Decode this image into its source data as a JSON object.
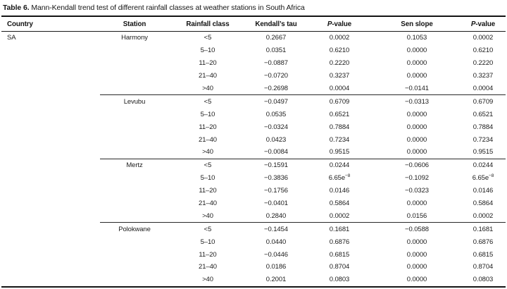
{
  "caption": {
    "label": "Table 6.",
    "text": " Mann-Kendall trend test of different rainfall classes at weather stations in South Africa"
  },
  "columns": [
    {
      "label": "Country",
      "align": "left"
    },
    {
      "label": "Station"
    },
    {
      "label": "Rainfall class"
    },
    {
      "label": "Kendall’s tau"
    },
    {
      "label": "P-value",
      "italic_first": true
    },
    {
      "label": "Sen slope"
    },
    {
      "label": "P-value",
      "italic_first": true
    }
  ],
  "country": "SA",
  "chart_data": {
    "type": "table",
    "title": "Table 6. Mann-Kendall trend test of different rainfall classes at weather stations in South Africa",
    "groups": [
      {
        "station": "Harmony",
        "rows": [
          {
            "rainfall_class": "<5",
            "tau": "0.2667",
            "p": "0.0002",
            "sen": "0.1053",
            "p2": "0.0002"
          },
          {
            "rainfall_class": "5–10",
            "tau": "0.0351",
            "p": "0.6210",
            "sen": "0.0000",
            "p2": "0.6210"
          },
          {
            "rainfall_class": "11–20",
            "tau": "−0.0887",
            "p": "0.2220",
            "sen": "0.0000",
            "p2": "0.2220"
          },
          {
            "rainfall_class": "21–40",
            "tau": "−0.0720",
            "p": "0.3237",
            "sen": "0.0000",
            "p2": "0.3237"
          },
          {
            "rainfall_class": ">40",
            "tau": "−0.2698",
            "p": "0.0004",
            "sen": "−0.0141",
            "p2": "0.0004"
          }
        ]
      },
      {
        "station": "Levubu",
        "rows": [
          {
            "rainfall_class": "<5",
            "tau": "−0.0497",
            "p": "0.6709",
            "sen": "−0.0313",
            "p2": "0.6709"
          },
          {
            "rainfall_class": "5–10",
            "tau": "0.0535",
            "p": "0.6521",
            "sen": "0.0000",
            "p2": "0.6521"
          },
          {
            "rainfall_class": "11–20",
            "tau": "−0.0324",
            "p": "0.7884",
            "sen": "0.0000",
            "p2": "0.7884"
          },
          {
            "rainfall_class": "21–40",
            "tau": "0.0423",
            "p": "0.7234",
            "sen": "0.0000",
            "p2": "0.7234"
          },
          {
            "rainfall_class": ">40",
            "tau": "−0.0084",
            "p": "0.9515",
            "sen": "0.0000",
            "p2": "0.9515"
          }
        ]
      },
      {
        "station": "Mertz",
        "rows": [
          {
            "rainfall_class": "<5",
            "tau": "−0.1591",
            "p": "0.0244",
            "sen": "−0.0606",
            "p2": "0.0244"
          },
          {
            "rainfall_class": "5–10",
            "tau": "−0.3836",
            "p": {
              "base": "6.65e",
              "sup": "−8"
            },
            "sen": "−0.1092",
            "p2": {
              "base": "6.65e",
              "sup": "−8"
            }
          },
          {
            "rainfall_class": "11–20",
            "tau": "−0.1756",
            "p": "0.0146",
            "sen": "−0.0323",
            "p2": "0.0146"
          },
          {
            "rainfall_class": "21–40",
            "tau": "−0.0401",
            "p": "0.5864",
            "sen": "0.0000",
            "p2": "0.5864"
          },
          {
            "rainfall_class": ">40",
            "tau": "0.2840",
            "p": "0.0002",
            "sen": "0.0156",
            "p2": "0.0002"
          }
        ]
      },
      {
        "station": "Polokwane",
        "rows": [
          {
            "rainfall_class": "<5",
            "tau": "−0.1454",
            "p": "0.1681",
            "sen": "−0.0588",
            "p2": "0.1681"
          },
          {
            "rainfall_class": "5–10",
            "tau": "0.0440",
            "p": "0.6876",
            "sen": "0.0000",
            "p2": "0.6876"
          },
          {
            "rainfall_class": "11–20",
            "tau": "−0.0446",
            "p": "0.6815",
            "sen": "0.0000",
            "p2": "0.6815"
          },
          {
            "rainfall_class": "21–40",
            "tau": "0.0186",
            "p": "0.8704",
            "sen": "0.0000",
            "p2": "0.8704"
          },
          {
            "rainfall_class": ">40",
            "tau": "0.2001",
            "p": "0.0803",
            "sen": "0.0000",
            "p2": "0.0803"
          }
        ]
      }
    ]
  },
  "colors": {
    "text": "#1c1c1c",
    "rule": "#141414",
    "background": "#ffffff"
  }
}
